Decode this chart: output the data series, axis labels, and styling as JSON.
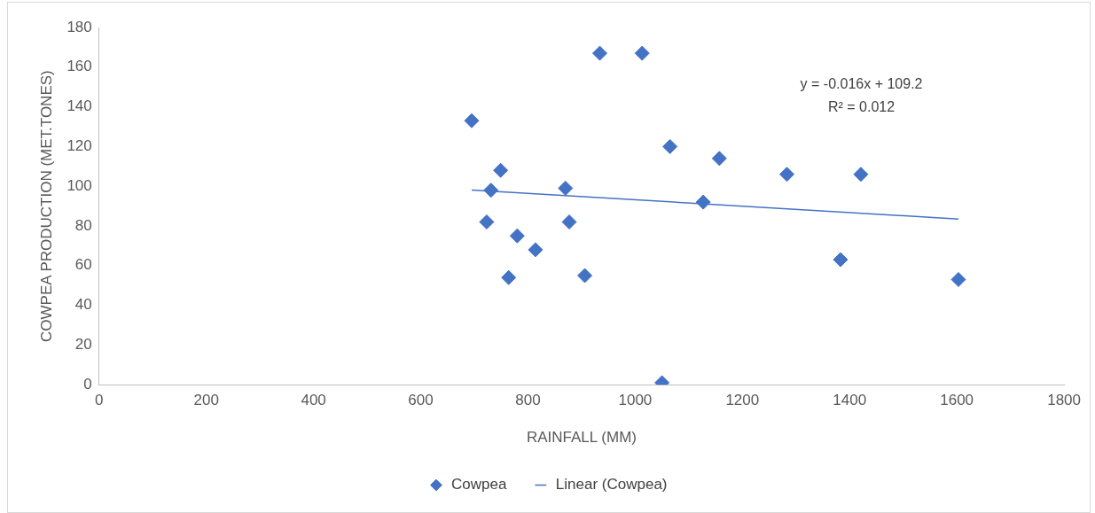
{
  "chart_data": {
    "type": "scatter",
    "xlabel": "RAINFALL (MM)",
    "ylabel": "COWPEA PRODUCTION (MET.TONES)",
    "x": [
      695,
      749,
      731,
      723,
      780,
      764,
      814,
      870,
      877,
      906,
      934,
      1013,
      1065,
      1050,
      1157,
      1127,
      1283,
      1421,
      1383,
      1603
    ],
    "series": [
      {
        "name": "Cowpea",
        "color": "#4472c4",
        "marker": "diamond",
        "values": [
          133,
          108,
          98,
          82,
          75,
          54,
          68,
          99,
          82,
          55,
          167,
          167,
          120,
          1,
          114,
          92,
          106,
          106,
          63,
          53
        ]
      },
      {
        "name": "Linear (Cowpea)",
        "type": "line",
        "color": "#4472c4",
        "marker": "none",
        "x": [
          695,
          1603
        ],
        "values": [
          98.1,
          83.5
        ]
      }
    ],
    "annotations": [
      "y = -0.016x + 109.2",
      "R² = 0.012"
    ],
    "xlim": [
      0,
      1800
    ],
    "xticks": [
      0,
      200,
      400,
      600,
      800,
      1000,
      1200,
      1400,
      1600,
      1800
    ],
    "ylim": [
      0,
      180
    ],
    "yticks": [
      0,
      20,
      40,
      60,
      80,
      100,
      120,
      140,
      160,
      180
    ],
    "grid": false,
    "legend": "bottom",
    "line_style": "solid"
  }
}
